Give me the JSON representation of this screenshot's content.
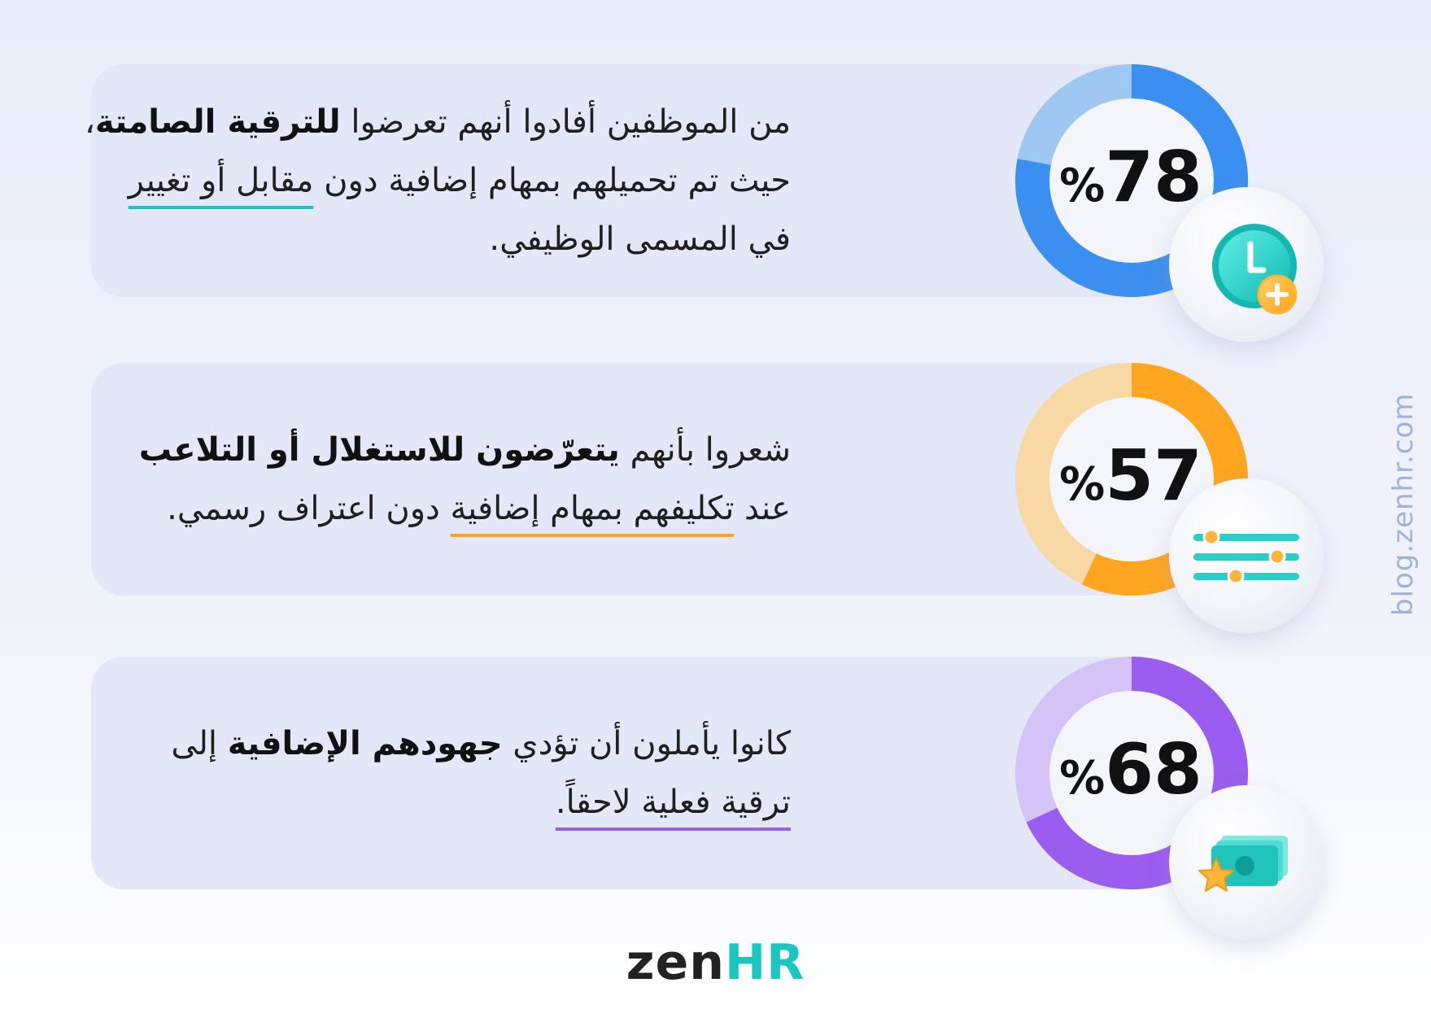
{
  "stats": [
    {
      "value": "78",
      "percent_sign": "%",
      "fraction": 0.78,
      "color": "#3b8ff0",
      "track_color": "#9ec8f2",
      "text": {
        "l1a": "من الموظفين أفادوا أنهم تعرضوا ",
        "l1b": "للترقية الصامتة",
        "l1c": "،",
        "l2a": "حيث تم تحميلهم بمهام إضافية دون ",
        "l2u": "مقابل أو تغيير",
        "l3": "في المسمى الوظيفي."
      },
      "icon": "clock-plus-icon"
    },
    {
      "value": "57",
      "percent_sign": "%",
      "fraction": 0.57,
      "color": "#ffa51f",
      "track_color": "#f8d9a6",
      "text": {
        "l1a": "شعروا بأنهم ",
        "l1b": "يتعرّضون للاستغلال أو التلاعب",
        "l2a": "عند ",
        "l2u": "تكليفهم بمهام إضافية",
        "l2c": " دون اعتراف رسمي."
      },
      "icon": "sliders-icon"
    },
    {
      "value": "68",
      "percent_sign": "%",
      "fraction": 0.68,
      "color": "#9b5cf0",
      "track_color": "#d5c2f6",
      "text": {
        "l1a": "كانوا يأملون أن تؤدي ",
        "l1b": "جهودهم الإضافية",
        "l1c": " إلى",
        "l2u": "ترقية فعلية لاحقاً."
      },
      "icon": "money-star-icon"
    }
  ],
  "watermark": "blog.zenhr.com",
  "logo": {
    "zen": "zen",
    "hr": "HR"
  },
  "colors": {
    "accent": "#1cc6c0"
  }
}
